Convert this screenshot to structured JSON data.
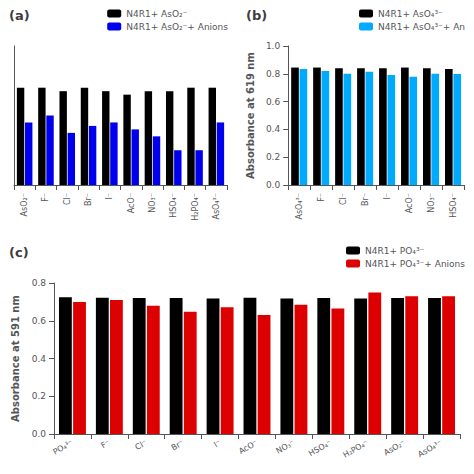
{
  "chart_data": [
    {
      "type": "bar",
      "title": "(a)",
      "categories": [
        "AsO₂⁻",
        "F⁻",
        "Cl⁻",
        "Br⁻",
        "I⁻",
        "AcO⁻",
        "NO₃⁻",
        "HSO₄⁻",
        "H₂PO₄⁻",
        "AsO₄³⁻"
      ],
      "series": [
        {
          "name": "N4R1+ AsO₂⁻",
          "color": "#000000",
          "values": [
            0.88,
            0.88,
            0.87,
            0.88,
            0.87,
            0.86,
            0.87,
            0.87,
            0.88,
            0.88
          ]
        },
        {
          "name": "N4R1+ AsO₂⁻+ Anions",
          "color": "#0000EE",
          "values": [
            0.78,
            0.8,
            0.75,
            0.77,
            0.78,
            0.76,
            0.74,
            0.7,
            0.7,
            0.78
          ]
        }
      ],
      "ylim": [
        0.6,
        1.0
      ],
      "yticks": [],
      "grid": false,
      "legend": "upper right",
      "tick_labels": "x"
    },
    {
      "type": "bar",
      "title": "(b)",
      "ylabel": "Absorbance at 619 nm",
      "categories": [
        "AsO₄³⁻",
        "F⁻",
        "Cl⁻",
        "Br⁻",
        "I⁻",
        "AcO⁻",
        "NO₃⁻",
        "HSO₄⁻"
      ],
      "series": [
        {
          "name": "N4R1+ AsO₄³⁻",
          "color": "#000000",
          "values": [
            0.845,
            0.845,
            0.84,
            0.84,
            0.84,
            0.845,
            0.84,
            0.835
          ]
        },
        {
          "name": "N4R1+ AsO₄³⁻+ An",
          "color": "#00AAFF",
          "values": [
            0.835,
            0.82,
            0.8,
            0.815,
            0.792,
            0.778,
            0.8,
            0.798
          ]
        }
      ],
      "ylim": [
        0.0,
        1.0
      ],
      "yticks": [
        {
          "value": 0,
          "label": "0.0"
        },
        0.2,
        0.4,
        0.6,
        0.8,
        {
          "value": 1,
          "label": "1.0"
        }
      ],
      "grid": false,
      "legend": "upper right"
    },
    {
      "type": "bar",
      "title": "(c)",
      "ylabel": "Absorbance at 591 nm",
      "categories": [
        "PO₄³⁻",
        "F⁻",
        "Cl⁻",
        "Br⁻",
        "I⁻",
        "AcO⁻",
        "NO₃⁻",
        "HSO₄⁻",
        "H₂PO₄⁻",
        "AsO₂⁻",
        "AsO₄³⁻"
      ],
      "series": [
        {
          "name": "N4R1+ PO₄³⁻",
          "color": "#000000",
          "values": [
            0.725,
            0.722,
            0.72,
            0.72,
            0.718,
            0.722,
            0.718,
            0.72,
            0.718,
            0.72,
            0.72
          ]
        },
        {
          "name": "N4R1+ PO₄³⁻+ Anions",
          "color": "#DD0000",
          "values": [
            0.7,
            0.71,
            0.68,
            0.648,
            0.672,
            0.63,
            0.685,
            0.665,
            0.75,
            0.73,
            0.73
          ]
        }
      ],
      "ylim": [
        0.0,
        0.8
      ],
      "yticks": [
        {
          "value": 0,
          "label": "0.0"
        },
        0.2,
        0.4,
        0.6,
        0.8
      ],
      "grid": false,
      "legend": "upper right"
    }
  ]
}
